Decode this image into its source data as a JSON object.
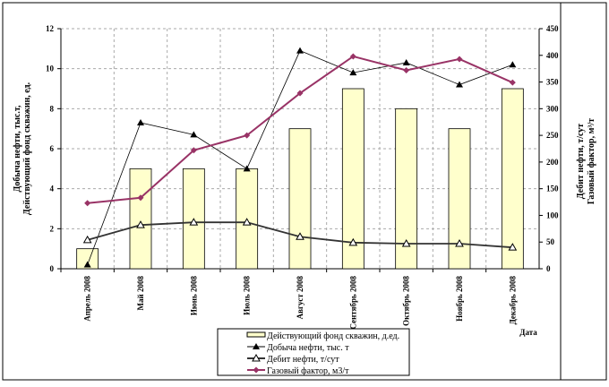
{
  "chart_data": {
    "type": "bar+line",
    "categories": [
      "Апрель 2008",
      "Май 2008",
      "Июнь 2008",
      "Июль 2008",
      "Август 2008",
      "Сентябрь 2008",
      "Октябрь 2008",
      "Ноябрь 2008",
      "Декабрь 2008"
    ],
    "xlabel": "Дата",
    "ylabel_left": [
      "Добыча нефти, тыс.т,",
      "Действующий фонд скважин, ед."
    ],
    "ylabel_right": [
      "Дебит нефти, т/сут",
      "Газовый фактор, м³/т"
    ],
    "ylim_left": [
      0,
      12
    ],
    "yticks_left": [
      0,
      2,
      4,
      6,
      8,
      10,
      12
    ],
    "ylim_right": [
      0,
      450
    ],
    "yticks_right": [
      0,
      50,
      100,
      150,
      200,
      250,
      300,
      350,
      400,
      450
    ],
    "grid": true,
    "legend_position": "bottom",
    "series": [
      {
        "name": "Действующий фонд скважин, д.ед.",
        "kind": "bar",
        "axis": "left",
        "color": "#FFFFCC",
        "values": [
          1,
          5,
          5,
          5,
          7,
          9,
          8,
          7,
          9
        ]
      },
      {
        "name": "Добыча нефти, тыс. т",
        "kind": "line",
        "marker": "filled-triangle",
        "axis": "left",
        "color": "#000000",
        "values": [
          0.2,
          7.3,
          6.7,
          5.0,
          10.9,
          9.8,
          10.3,
          9.2,
          10.2
        ]
      },
      {
        "name": "Дебит нефти, т/сут",
        "kind": "line",
        "marker": "open-triangle",
        "axis": "right",
        "color": "#333333",
        "values": [
          54,
          82,
          87,
          87,
          60,
          49,
          47,
          47,
          40
        ]
      },
      {
        "name": "Газовый фактор, м3/т",
        "kind": "line",
        "marker": "diamond",
        "axis": "right",
        "color": "#993366",
        "values": [
          123,
          133,
          222,
          250,
          329,
          398,
          372,
          393,
          349
        ]
      }
    ]
  }
}
